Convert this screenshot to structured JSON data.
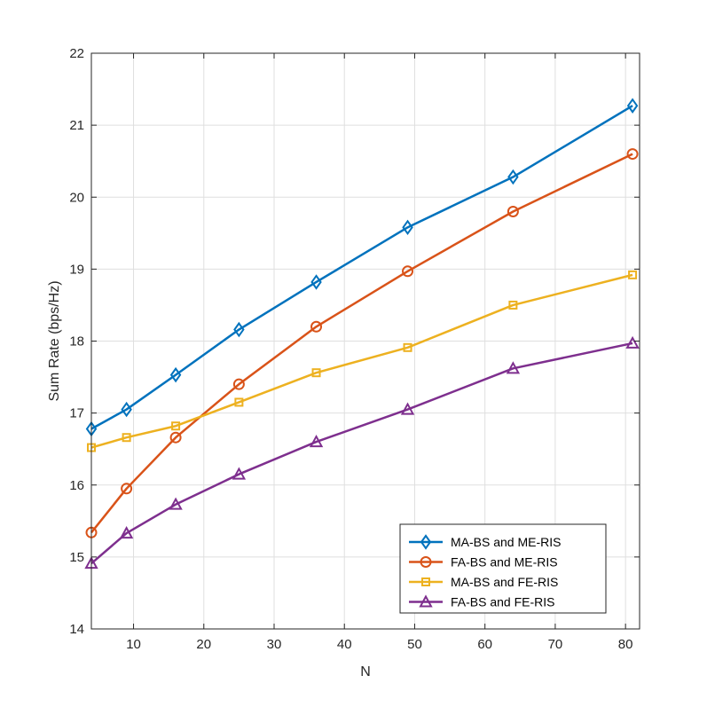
{
  "chart_data": {
    "type": "line",
    "title": "",
    "xlabel": "N",
    "ylabel": "Sum Rate (bps/Hz)",
    "xlim": [
      4,
      82
    ],
    "ylim": [
      14,
      22
    ],
    "xticks": [
      10,
      20,
      30,
      40,
      50,
      60,
      70,
      80
    ],
    "yticks": [
      14,
      15,
      16,
      17,
      18,
      19,
      20,
      21,
      22
    ],
    "grid": true,
    "legend_position": "bottom-right",
    "x": [
      4,
      9,
      16,
      25,
      36,
      49,
      64,
      81
    ],
    "series": [
      {
        "name": "MA-BS and ME-RIS",
        "color": "#0072BD",
        "marker": "diamond",
        "values": [
          16.78,
          17.05,
          17.53,
          18.16,
          18.82,
          19.58,
          20.28,
          21.27
        ]
      },
      {
        "name": "FA-BS and ME-RIS",
        "color": "#D95319",
        "marker": "circle",
        "values": [
          15.34,
          15.95,
          16.66,
          17.4,
          18.2,
          18.97,
          19.8,
          20.6
        ]
      },
      {
        "name": "MA-BS and FE-RIS",
        "color": "#EDB120",
        "marker": "square",
        "values": [
          16.52,
          16.66,
          16.82,
          17.15,
          17.56,
          17.91,
          18.5,
          18.92
        ]
      },
      {
        "name": "FA-BS and FE-RIS",
        "color": "#7E2F8E",
        "marker": "triangle",
        "values": [
          14.91,
          15.33,
          15.73,
          16.15,
          16.6,
          17.05,
          17.62,
          17.97
        ]
      }
    ]
  }
}
